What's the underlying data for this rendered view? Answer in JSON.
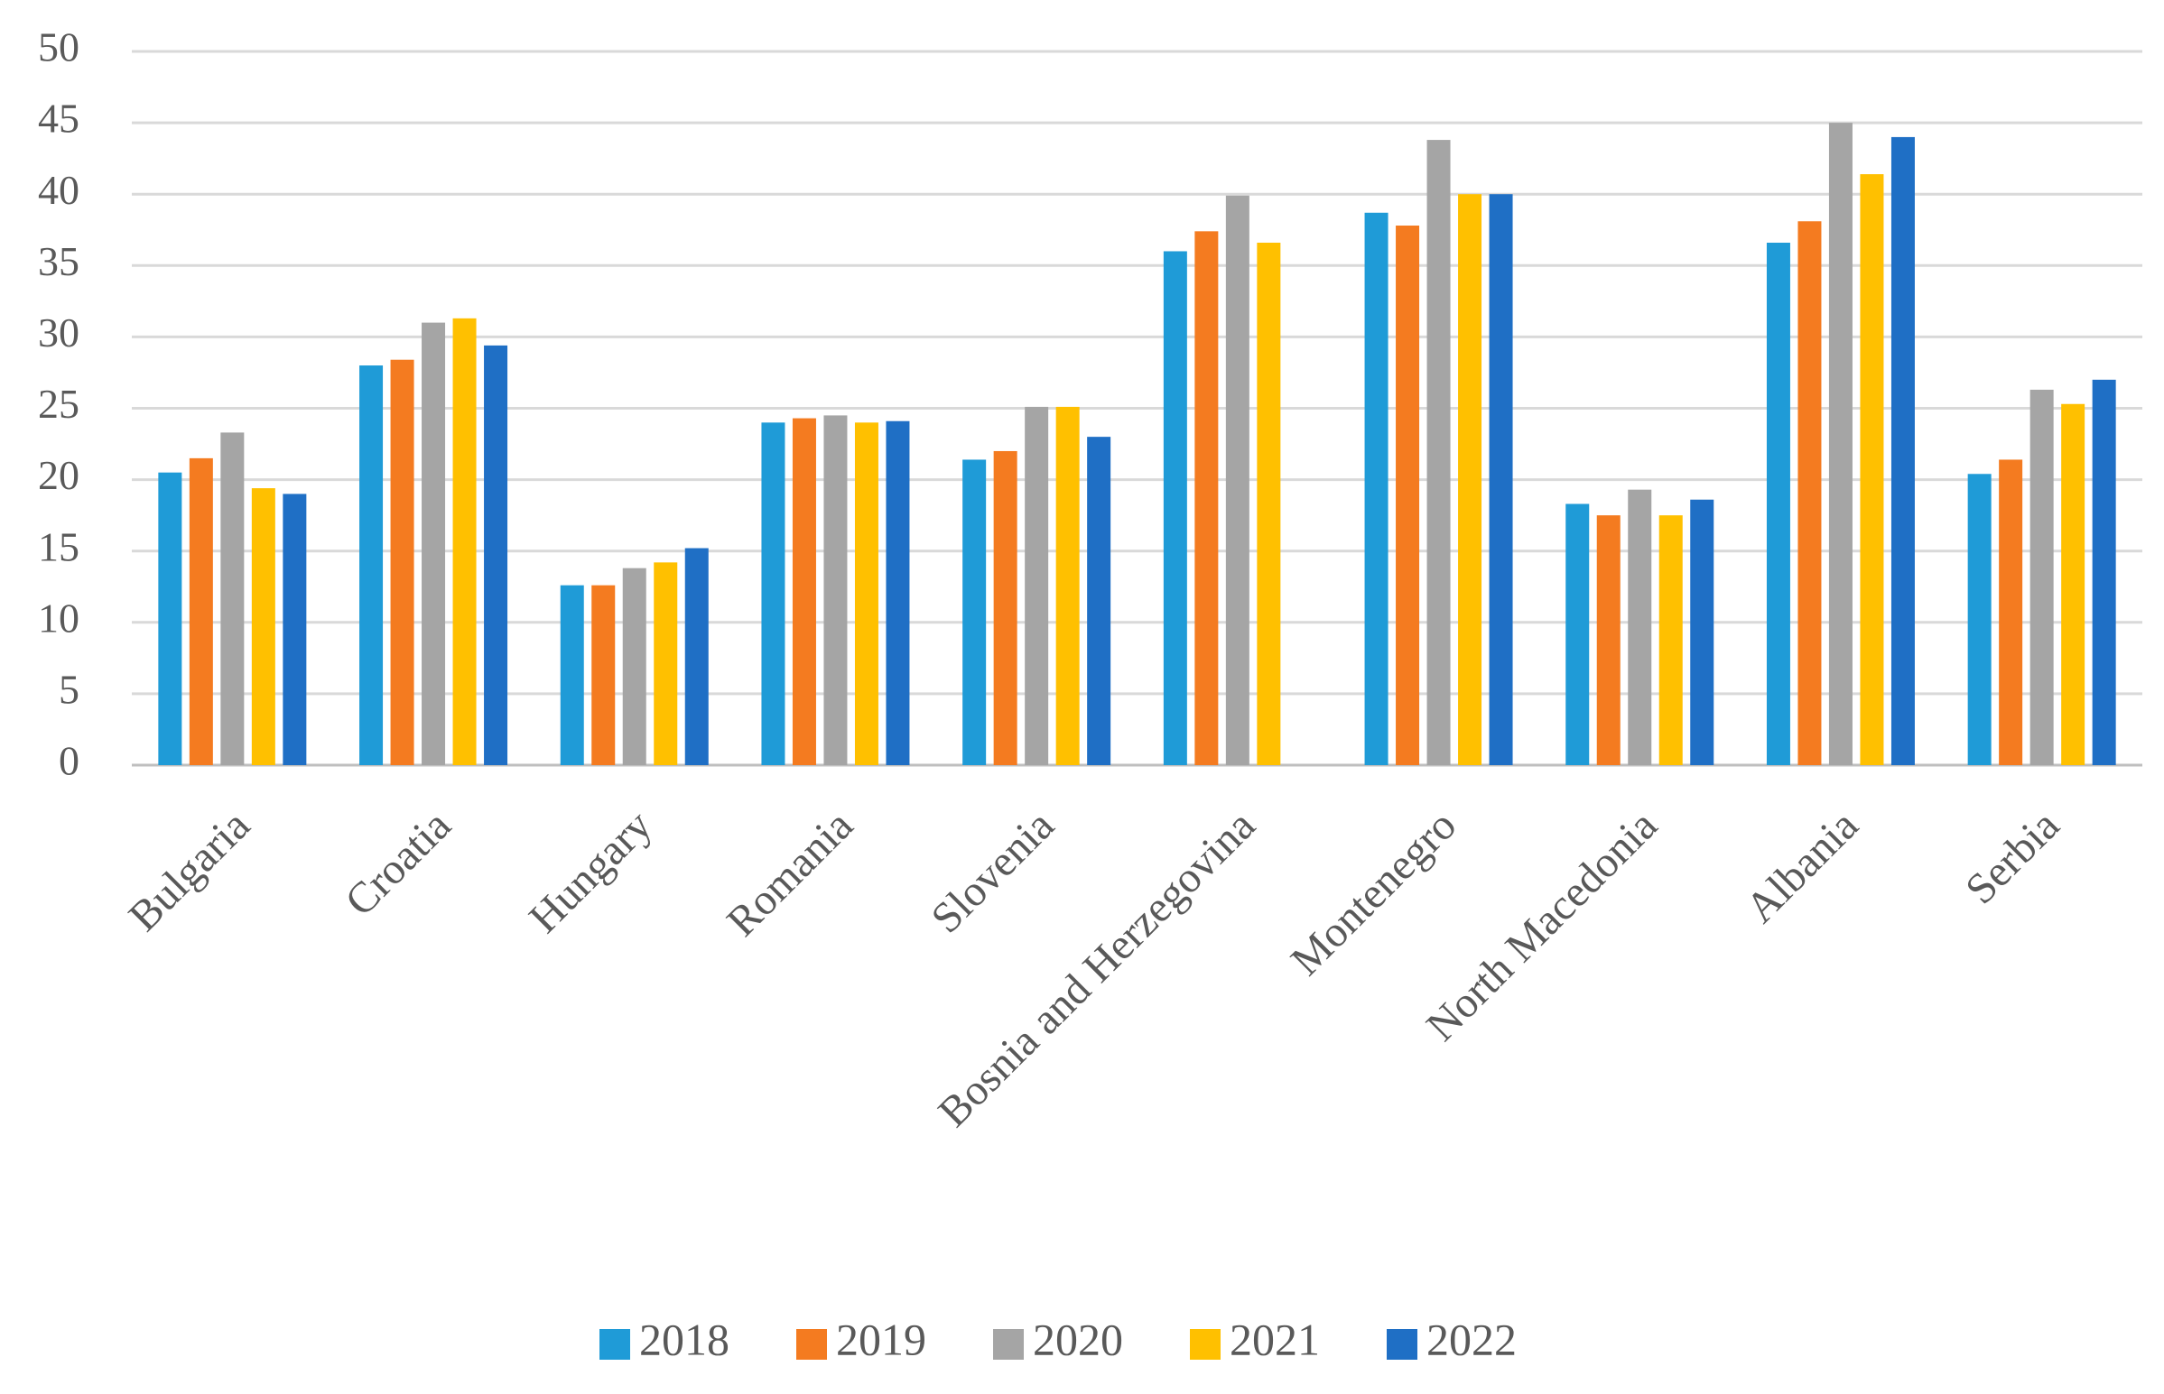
{
  "chart_data": {
    "type": "bar",
    "categories": [
      "Bulgaria",
      "Croatia",
      "Hungary",
      "Romania",
      "Slovenia",
      "Bosnia and Herzegovina",
      "Montenegro",
      "North Macedonia",
      "Albania",
      "Serbia"
    ],
    "series": [
      {
        "name": "2018",
        "color": "#1f9bd7",
        "values": [
          20.5,
          28,
          12.6,
          24,
          21.4,
          36,
          38.7,
          18.3,
          36.6,
          20.4
        ]
      },
      {
        "name": "2019",
        "color": "#f47b20",
        "values": [
          21.5,
          28.4,
          12.6,
          24.3,
          22,
          37.4,
          37.8,
          17.5,
          38.1,
          21.4
        ]
      },
      {
        "name": "2020",
        "color": "#a5a5a5",
        "values": [
          23.3,
          31,
          13.8,
          24.5,
          25.1,
          39.9,
          43.8,
          19.3,
          45,
          26.3
        ]
      },
      {
        "name": "2021",
        "color": "#ffc000",
        "values": [
          19.4,
          31.3,
          14.2,
          24,
          25.1,
          36.6,
          40,
          17.5,
          41.4,
          25.3
        ]
      },
      {
        "name": "2022",
        "color": "#1f6fc5",
        "values": [
          19,
          29.4,
          15.2,
          24.1,
          23,
          null,
          40,
          18.6,
          44,
          27
        ]
      }
    ],
    "ylim": [
      0,
      50
    ],
    "yticks": [
      0,
      5,
      10,
      15,
      20,
      25,
      30,
      35,
      40,
      45,
      50
    ],
    "grid": true,
    "legend": "bottom"
  }
}
